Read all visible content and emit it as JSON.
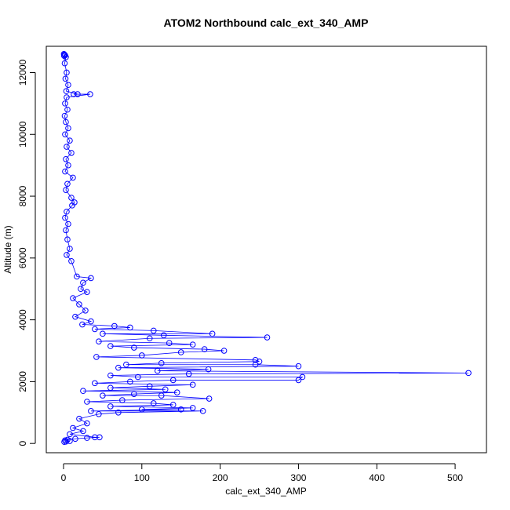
{
  "chart_data": {
    "type": "scatter",
    "title": "ATOM2 Northbound calc_ext_340_AMP",
    "xlabel": "calc_ext_340_AMP",
    "ylabel": "Altitude (m)",
    "xlim": [
      -22,
      540
    ],
    "ylim": [
      -300,
      12850
    ],
    "x_ticks": [
      0,
      100,
      200,
      300,
      400,
      500
    ],
    "y_ticks": [
      0,
      2000,
      4000,
      6000,
      8000,
      10000,
      12000
    ],
    "x_tick_labels": [
      "0",
      "100",
      "200",
      "300",
      "400",
      "500"
    ],
    "y_tick_labels": [
      "0",
      "2000",
      "4000",
      "6000",
      "8000",
      "10000",
      "12000"
    ],
    "marker": "open-circle",
    "connect_points": true,
    "color": "#0000ff",
    "series": [
      {
        "points": [
          [
            0.5,
            12600
          ],
          [
            1.2,
            12580
          ],
          [
            2.0,
            12560
          ],
          [
            0.8,
            12540
          ],
          [
            3.0,
            12500
          ],
          [
            1.5,
            12300
          ],
          [
            4.0,
            12000
          ],
          [
            2.5,
            11800
          ],
          [
            6.0,
            11600
          ],
          [
            3.5,
            11400
          ],
          [
            18.0,
            11300
          ],
          [
            13.0,
            11300
          ],
          [
            34.0,
            11300
          ],
          [
            4.0,
            11200
          ],
          [
            2.0,
            11000
          ],
          [
            5.0,
            10800
          ],
          [
            1.5,
            10600
          ],
          [
            3.0,
            10400
          ],
          [
            6.0,
            10200
          ],
          [
            2.0,
            10000
          ],
          [
            8.0,
            9800
          ],
          [
            4.0,
            9600
          ],
          [
            10.0,
            9400
          ],
          [
            3.0,
            9200
          ],
          [
            6.0,
            9000
          ],
          [
            2.0,
            8800
          ],
          [
            12.0,
            8600
          ],
          [
            5.0,
            8400
          ],
          [
            3.0,
            8200
          ],
          [
            10.0,
            7950
          ],
          [
            14.0,
            7800
          ],
          [
            11.0,
            7700
          ],
          [
            4.0,
            7500
          ],
          [
            2.0,
            7300
          ],
          [
            6.0,
            7100
          ],
          [
            3.0,
            6900
          ],
          [
            5.0,
            6600
          ],
          [
            8.0,
            6300
          ],
          [
            4.0,
            6100
          ],
          [
            10.0,
            5900
          ],
          [
            17.0,
            5400
          ],
          [
            35.0,
            5350
          ],
          [
            25.0,
            5200
          ],
          [
            22.0,
            5000
          ],
          [
            30.0,
            4900
          ],
          [
            12.0,
            4700
          ],
          [
            20.0,
            4500
          ],
          [
            28.0,
            4300
          ],
          [
            15.0,
            4100
          ],
          [
            35.0,
            3950
          ],
          [
            24.0,
            3850
          ],
          [
            65.0,
            3800
          ],
          [
            85.0,
            3750
          ],
          [
            40.0,
            3700
          ],
          [
            115.0,
            3650
          ],
          [
            190.0,
            3550
          ],
          [
            50.0,
            3550
          ],
          [
            128.0,
            3500
          ],
          [
            260.0,
            3430
          ],
          [
            110.0,
            3400
          ],
          [
            45.0,
            3300
          ],
          [
            135.0,
            3250
          ],
          [
            165.0,
            3200
          ],
          [
            60.0,
            3150
          ],
          [
            90.0,
            3100
          ],
          [
            180.0,
            3050
          ],
          [
            205.0,
            3000
          ],
          [
            150.0,
            2950
          ],
          [
            100.0,
            2850
          ],
          [
            42.0,
            2800
          ],
          [
            245.0,
            2700
          ],
          [
            250.0,
            2650
          ],
          [
            125.0,
            2600
          ],
          [
            80.0,
            2550
          ],
          [
            245.0,
            2550
          ],
          [
            300.0,
            2500
          ],
          [
            70.0,
            2450
          ],
          [
            185.0,
            2400
          ],
          [
            120.0,
            2350
          ],
          [
            517.0,
            2280
          ],
          [
            160.0,
            2250
          ],
          [
            60.0,
            2200
          ],
          [
            95.0,
            2150
          ],
          [
            305.0,
            2150
          ],
          [
            300.0,
            2050
          ],
          [
            140.0,
            2050
          ],
          [
            85.0,
            2000
          ],
          [
            40.0,
            1950
          ],
          [
            165.0,
            1900
          ],
          [
            110.0,
            1850
          ],
          [
            60.0,
            1800
          ],
          [
            130.0,
            1750
          ],
          [
            25.0,
            1700
          ],
          [
            145.0,
            1650
          ],
          [
            90.0,
            1600
          ],
          [
            50.0,
            1550
          ],
          [
            125.0,
            1550
          ],
          [
            186.0,
            1450
          ],
          [
            75.0,
            1400
          ],
          [
            30.0,
            1350
          ],
          [
            115.0,
            1300
          ],
          [
            140.0,
            1250
          ],
          [
            60.0,
            1200
          ],
          [
            165.0,
            1150
          ],
          [
            100.0,
            1100
          ],
          [
            150.0,
            1100
          ],
          [
            35.0,
            1050
          ],
          [
            178.0,
            1050
          ],
          [
            70.0,
            1000
          ],
          [
            45.0,
            950
          ],
          [
            20.0,
            800
          ],
          [
            30.0,
            650
          ],
          [
            12.0,
            500
          ],
          [
            25.0,
            400
          ],
          [
            8.0,
            300
          ],
          [
            40.0,
            200
          ],
          [
            46.0,
            200
          ],
          [
            30.0,
            180
          ],
          [
            15.0,
            150
          ],
          [
            5.0,
            120
          ],
          [
            2.0,
            100
          ],
          [
            8.0,
            80
          ],
          [
            3.0,
            60
          ],
          [
            1.0,
            50
          ]
        ]
      }
    ]
  }
}
